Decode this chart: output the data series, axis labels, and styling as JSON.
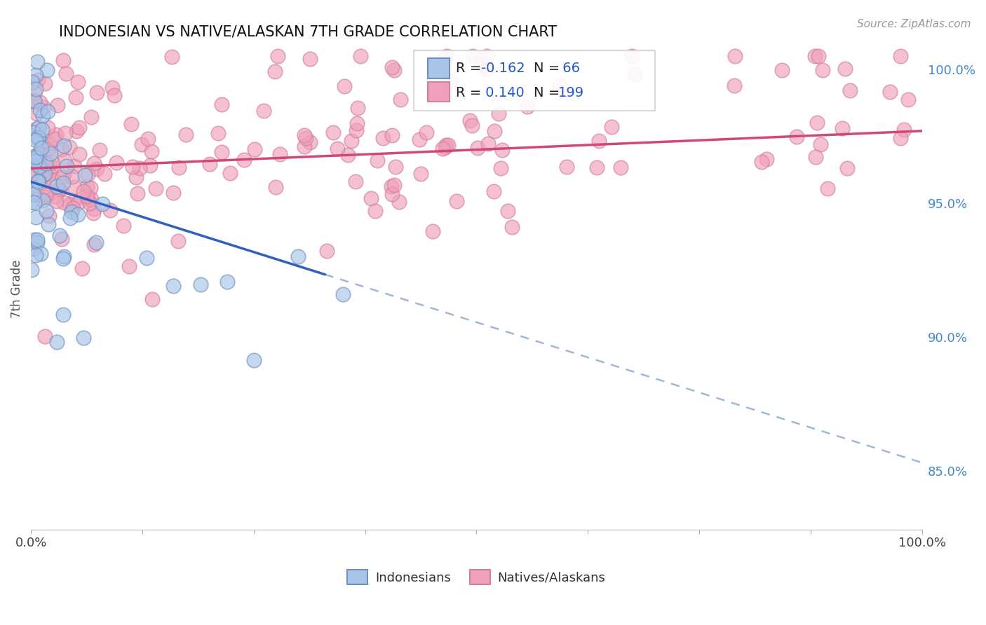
{
  "title": "INDONESIAN VS NATIVE/ALASKAN 7TH GRADE CORRELATION CHART",
  "source": "Source: ZipAtlas.com",
  "ylabel": "7th Grade",
  "ylabel_right_labels": [
    "100.0%",
    "95.0%",
    "90.0%",
    "85.0%"
  ],
  "ylabel_right_values": [
    1.0,
    0.95,
    0.9,
    0.85
  ],
  "r_blue": -0.162,
  "n_blue": 66,
  "r_pink": 0.14,
  "n_pink": 199,
  "xlim": [
    0.0,
    1.0
  ],
  "ylim": [
    0.828,
    1.008
  ],
  "blue_color_fill": "#a8c4e8",
  "blue_color_edge": "#7090c0",
  "pink_color_fill": "#f0a0b8",
  "pink_color_edge": "#d080a0",
  "blue_line_color": "#3060c0",
  "blue_dash_color": "#a0b8d8",
  "pink_line_color": "#d04878",
  "grid_color": "#cccccc",
  "source_color": "#999999",
  "right_axis_color": "#4488cc",
  "legend_text_color": "#222222",
  "legend_r_color": "#2255cc"
}
